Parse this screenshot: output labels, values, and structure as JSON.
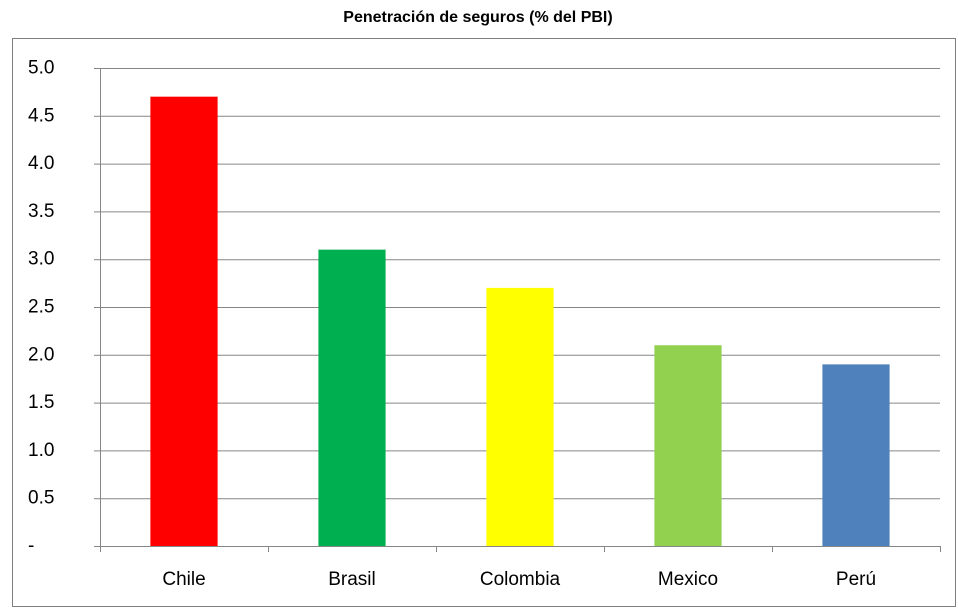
{
  "chart_data": {
    "type": "bar",
    "title": "Penetración de seguros (% del PBI)",
    "categories": [
      "Chile",
      "Brasil",
      "Colombia",
      "Mexico",
      "Perú"
    ],
    "values": [
      4.7,
      3.1,
      2.7,
      2.1,
      1.9
    ],
    "colors": [
      "#ff0000",
      "#00b050",
      "#ffff00",
      "#92d050",
      "#4f81bd"
    ],
    "ylim": [
      0,
      5
    ],
    "yticks": [
      {
        "value": 0,
        "label": "-"
      },
      0.5,
      {
        "value": 1,
        "label": "1.0"
      },
      1.5,
      {
        "value": 2,
        "label": "2.0"
      },
      2.5,
      {
        "value": 3,
        "label": "3.0"
      },
      3.5,
      {
        "value": 4,
        "label": "4.0"
      },
      4.5,
      {
        "value": 5,
        "label": "5.0"
      }
    ],
    "grid": true
  }
}
